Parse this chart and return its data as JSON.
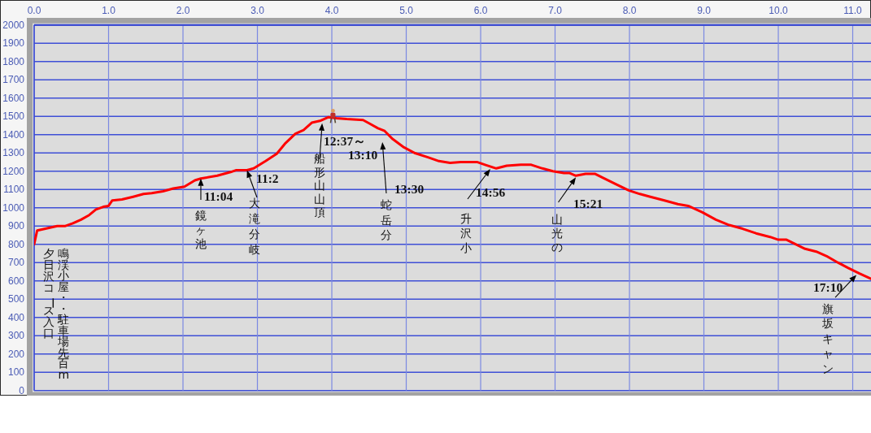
{
  "chart_data": {
    "type": "line",
    "color": "#ff0000",
    "x": [
      0,
      0.04,
      0.09,
      0.2,
      0.31,
      0.42,
      0.52,
      0.63,
      0.74,
      0.83,
      0.93,
      1.0,
      1.05,
      1.18,
      1.33,
      1.47,
      1.58,
      1.73,
      1.87,
      2.02,
      2.16,
      2.24,
      2.46,
      2.64,
      2.71,
      2.86,
      2.95,
      3.11,
      3.26,
      3.37,
      3.51,
      3.62,
      3.73,
      3.84,
      3.95,
      4.06,
      4.2,
      4.42,
      4.51,
      4.62,
      4.71,
      4.82,
      4.97,
      5.11,
      5.3,
      5.44,
      5.59,
      5.73,
      5.95,
      6.06,
      6.21,
      6.35,
      6.54,
      6.68,
      6.83,
      6.97,
      7.12,
      7.19,
      7.28,
      7.41,
      7.54,
      7.66,
      7.81,
      7.99,
      8.14,
      8.28,
      8.47,
      8.65,
      8.79,
      8.98,
      9.16,
      9.34,
      9.52,
      9.7,
      9.89,
      10.0,
      10.11,
      10.21,
      10.36,
      10.51,
      10.65,
      10.8,
      10.94,
      11.09,
      11.25
    ],
    "values": [
      800,
      875,
      880,
      890,
      900,
      900,
      915,
      935,
      960,
      990,
      1005,
      1010,
      1040,
      1045,
      1060,
      1075,
      1080,
      1090,
      1105,
      1115,
      1150,
      1160,
      1175,
      1195,
      1205,
      1205,
      1215,
      1255,
      1295,
      1350,
      1405,
      1425,
      1465,
      1475,
      1495,
      1490,
      1485,
      1480,
      1460,
      1435,
      1420,
      1375,
      1330,
      1300,
      1275,
      1255,
      1245,
      1250,
      1250,
      1235,
      1215,
      1230,
      1235,
      1235,
      1215,
      1200,
      1190,
      1190,
      1175,
      1185,
      1185,
      1160,
      1130,
      1095,
      1075,
      1060,
      1040,
      1020,
      1010,
      975,
      935,
      905,
      885,
      860,
      840,
      825,
      825,
      805,
      775,
      760,
      735,
      700,
      670,
      640,
      610
    ],
    "xlim": [
      0,
      11.25
    ],
    "xticks": [
      {
        "value": 0,
        "label": "0.0"
      },
      {
        "value": 1,
        "label": "1.0"
      },
      {
        "value": 2,
        "label": "2.0"
      },
      {
        "value": 3,
        "label": "3.0"
      },
      {
        "value": 4,
        "label": "4.0"
      },
      {
        "value": 5,
        "label": "5.0"
      },
      {
        "value": 6,
        "label": "6.0"
      },
      {
        "value": 7,
        "label": "7.0"
      },
      {
        "value": 8,
        "label": "8.0"
      },
      {
        "value": 9,
        "label": "9.0"
      },
      {
        "value": 10,
        "label": "10.0"
      },
      {
        "value": 11,
        "label": "11.0"
      }
    ],
    "ylim": [
      0,
      2000
    ],
    "yticks": [
      0,
      100,
      200,
      300,
      400,
      500,
      600,
      700,
      800,
      900,
      1000,
      1100,
      1200,
      1300,
      1400,
      1500,
      1600,
      1700,
      1800,
      1900,
      2000
    ],
    "grid": true,
    "annotations": [
      "鳴渓小屋・・駐車場先百m",
      {
        "text": "夕日沢コース入口",
        "x": 0,
        "y": 800
      },
      {
        "text": "11:04",
        "x": 2.24,
        "y": 1160
      },
      {
        "text": "鏡ヶ池",
        "x": 2.24,
        "y": 1160
      },
      {
        "text": "11:2",
        "x": 2.86,
        "y": 1205
      },
      {
        "text": "大滝分岐",
        "x": 2.86,
        "y": 1205
      },
      {
        "text": "12:37～",
        "x": 3.87,
        "y": 1480
      },
      {
        "text": "13:10",
        "x": 3.87,
        "y": 1480
      },
      {
        "text": "船形山山頂",
        "x": 3.87,
        "y": 1480
      },
      "13:30",
      "蛇岳分",
      {
        "text": "14:56",
        "x": 6.13,
        "y": 1225
      },
      "升沢小",
      {
        "text": "15:21",
        "x": 7.28,
        "y": 1175
      },
      "山光の",
      {
        "text": "17:10",
        "x": 11.05,
        "y": 650
      },
      "旗坂キャン"
    ]
  }
}
